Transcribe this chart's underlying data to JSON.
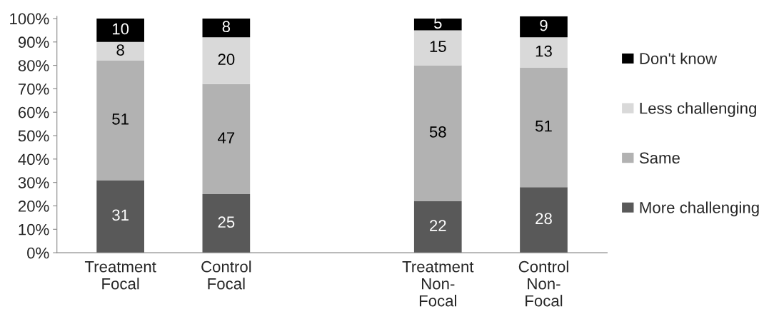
{
  "chart_data": {
    "type": "bar",
    "stacked": true,
    "data_labels": true,
    "legend": "right",
    "grid": false,
    "categories": [
      "Treatment Focal",
      "Control Focal",
      null,
      "Treatment Non-Focal",
      "Control Non-Focal"
    ],
    "series": [
      {
        "name": "More challenging",
        "color": "#595959",
        "values": [
          31,
          25,
          null,
          22,
          28
        ]
      },
      {
        "name": "Same",
        "color": "#b2b2b2",
        "values": [
          51,
          47,
          null,
          58,
          51
        ]
      },
      {
        "name": "Less challenging",
        "color": "#d9d9d9",
        "values": [
          8,
          20,
          null,
          15,
          13
        ]
      },
      {
        "name": "Don't know",
        "color": "#000000",
        "values": [
          10,
          8,
          null,
          5,
          9
        ]
      }
    ],
    "ylim": [
      0,
      101
    ],
    "yticks": [
      {
        "value": 0,
        "label": "0%"
      },
      {
        "value": 10,
        "label": "10%"
      },
      {
        "value": 20,
        "label": "20%"
      },
      {
        "value": 30,
        "label": "30%"
      },
      {
        "value": 40,
        "label": "40%"
      },
      {
        "value": 50,
        "label": "50%"
      },
      {
        "value": 60,
        "label": "60%"
      },
      {
        "value": 70,
        "label": "70%"
      },
      {
        "value": 80,
        "label": "80%"
      },
      {
        "value": 90,
        "label": "90%"
      },
      {
        "value": 100,
        "label": "100%"
      }
    ]
  }
}
